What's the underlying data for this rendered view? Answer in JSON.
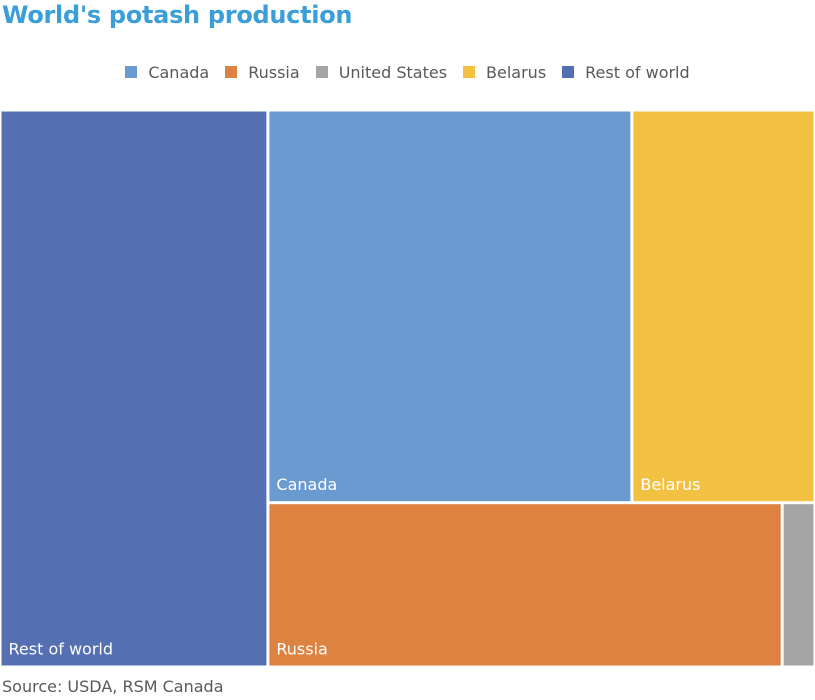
{
  "chart_data": {
    "type": "treemap",
    "title": "World's potash production",
    "source": "Source: USDA, RSM Canada",
    "legend_position": "top",
    "series": [
      {
        "name": "Canada",
        "color": "#6a9ad0",
        "value": 31.8,
        "show_label": true
      },
      {
        "name": "Russia",
        "color": "#de8242",
        "value": 18.8,
        "show_label": true
      },
      {
        "name": "United States",
        "color": "#a5a5a5",
        "value": 1.2,
        "show_label": false
      },
      {
        "name": "Belarus",
        "color": "#f2c142",
        "value": 16.0,
        "show_label": true
      },
      {
        "name": "Rest of world",
        "color": "#5470b3",
        "value": 33.2,
        "show_label": true
      }
    ]
  }
}
